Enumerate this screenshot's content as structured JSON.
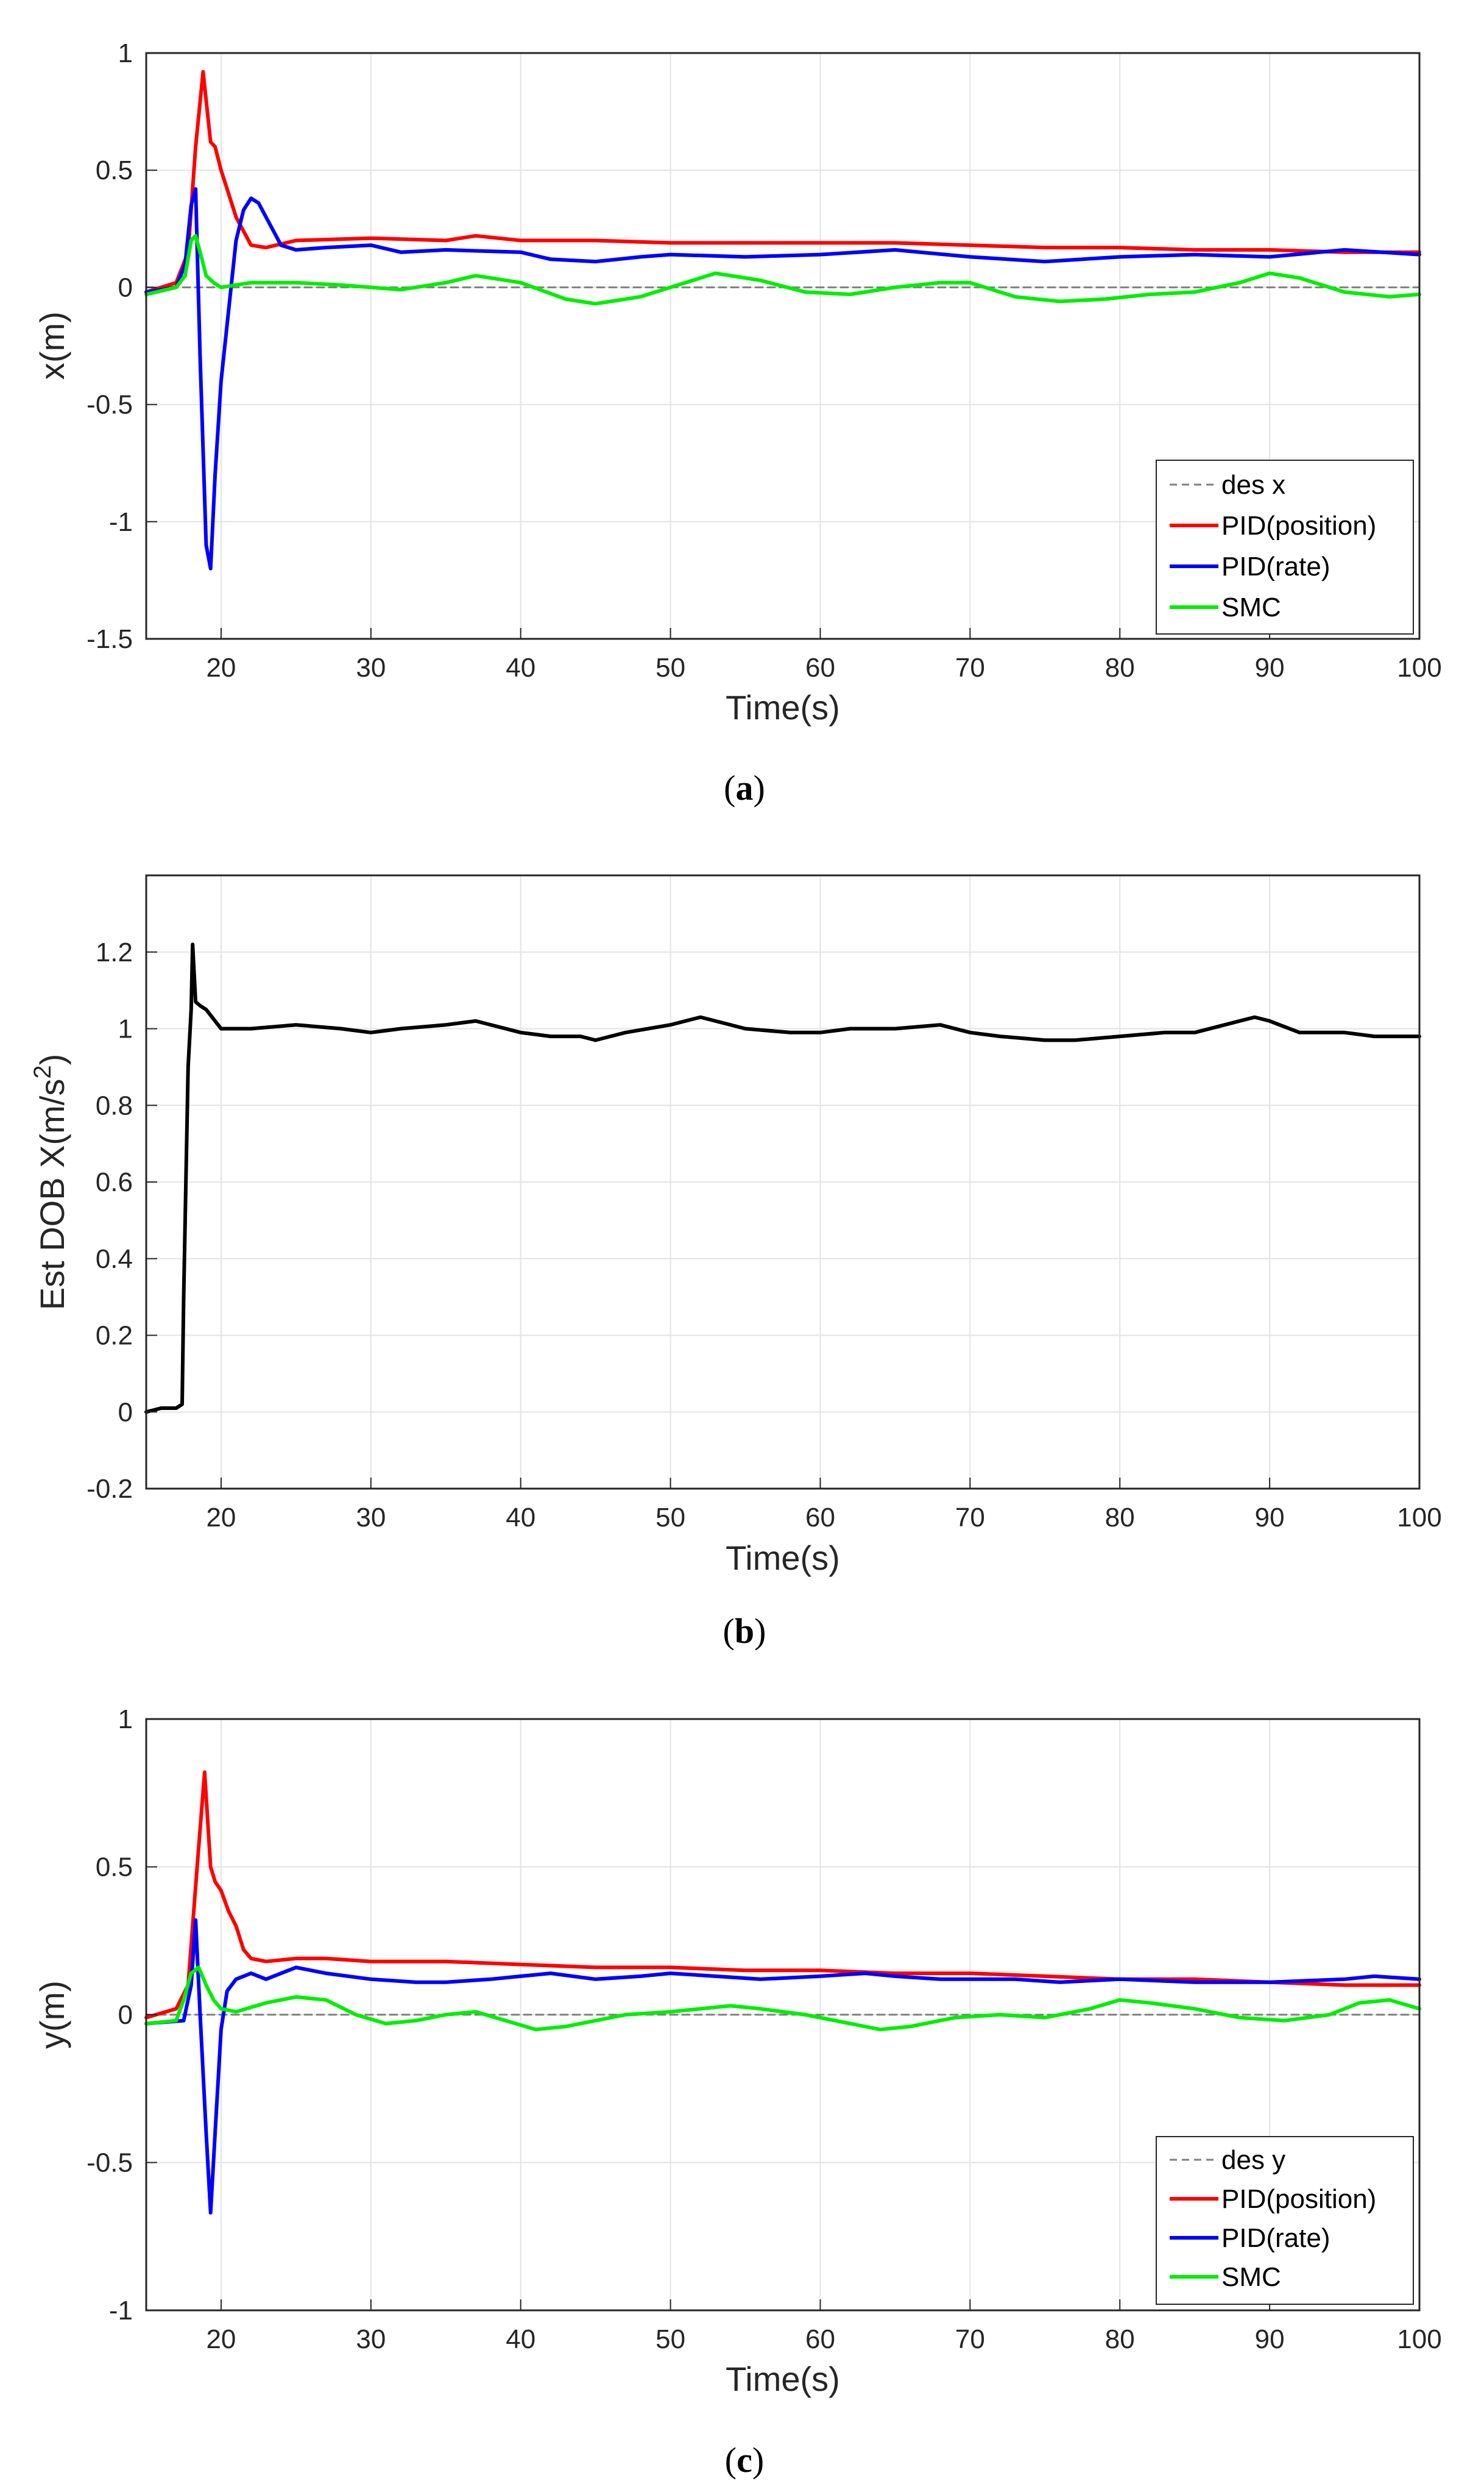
{
  "chart_data": [
    {
      "type": "line",
      "panel_label": "a",
      "xlabel": "Time(s)",
      "ylabel": "x(m)",
      "xlim": [
        15,
        100
      ],
      "ylim": [
        -1.5,
        1
      ],
      "xticks": [
        20,
        30,
        40,
        50,
        60,
        70,
        80,
        90,
        100
      ],
      "yticks": [
        -1.5,
        -1,
        -0.5,
        0,
        0.5,
        1
      ],
      "ytick_labels": [
        "-1.5",
        "-1",
        "-0.5",
        "0",
        "0.5",
        "1"
      ],
      "grid": true,
      "legend_position": "bottom-right",
      "series": [
        {
          "name": "des x",
          "color": "#7f7f7f",
          "style": "dashed",
          "x": [
            15,
            100
          ],
          "y": [
            0,
            0
          ]
        },
        {
          "name": "PID(position)",
          "color": "#ff0000",
          "style": "solid",
          "x": [
            15,
            17,
            17.8,
            18.3,
            18.8,
            19.3,
            19.6,
            20,
            20.5,
            21,
            22,
            23,
            25,
            30,
            35,
            37,
            40,
            45,
            50,
            55,
            60,
            65,
            70,
            75,
            80,
            85,
            90,
            95,
            100
          ],
          "y": [
            -0.02,
            0.02,
            0.15,
            0.6,
            0.92,
            0.62,
            0.6,
            0.5,
            0.4,
            0.3,
            0.18,
            0.17,
            0.2,
            0.21,
            0.2,
            0.22,
            0.2,
            0.2,
            0.19,
            0.19,
            0.19,
            0.19,
            0.18,
            0.17,
            0.17,
            0.16,
            0.16,
            0.15,
            0.15
          ]
        },
        {
          "name": "PID(rate)",
          "color": "#0000ff",
          "style": "solid",
          "x": [
            15,
            17,
            17.6,
            18,
            18.3,
            18.6,
            19,
            19.3,
            19.6,
            20,
            20.5,
            21,
            21.5,
            22,
            22.5,
            23,
            24,
            25,
            27,
            30,
            32,
            35,
            40,
            42,
            45,
            48,
            50,
            55,
            60,
            65,
            70,
            75,
            80,
            85,
            90,
            95,
            100
          ],
          "y": [
            -0.02,
            0,
            0.1,
            0.35,
            0.42,
            -0.3,
            -1.1,
            -1.2,
            -0.8,
            -0.4,
            -0.1,
            0.2,
            0.33,
            0.38,
            0.36,
            0.3,
            0.18,
            0.16,
            0.17,
            0.18,
            0.15,
            0.16,
            0.15,
            0.12,
            0.11,
            0.13,
            0.14,
            0.13,
            0.14,
            0.16,
            0.13,
            0.11,
            0.13,
            0.14,
            0.13,
            0.16,
            0.14
          ]
        },
        {
          "name": "SMC",
          "color": "#00ee00",
          "style": "solid",
          "x": [
            15,
            17,
            17.6,
            18,
            18.3,
            18.6,
            19,
            19.5,
            20,
            22,
            25,
            28,
            30,
            32,
            35,
            37,
            40,
            43,
            45,
            48,
            50,
            53,
            56,
            59,
            62,
            65,
            68,
            70,
            73,
            76,
            79,
            82,
            85,
            88,
            90,
            92,
            95,
            98,
            100
          ],
          "y": [
            -0.03,
            0,
            0.05,
            0.2,
            0.22,
            0.15,
            0.05,
            0.02,
            0.0,
            0.02,
            0.02,
            0.01,
            0.0,
            -0.01,
            0.02,
            0.05,
            0.02,
            -0.05,
            -0.07,
            -0.04,
            0.0,
            0.06,
            0.03,
            -0.02,
            -0.03,
            0.0,
            0.02,
            0.02,
            -0.04,
            -0.06,
            -0.05,
            -0.03,
            -0.02,
            0.02,
            0.06,
            0.04,
            -0.02,
            -0.04,
            -0.03
          ]
        }
      ]
    },
    {
      "type": "line",
      "panel_label": "b",
      "xlabel": "Time(s)",
      "ylabel": "Est DOB X(m/s",
      "ylabel_sup": "2",
      "ylabel_end": ")",
      "xlim": [
        15,
        100
      ],
      "ylim": [
        -0.2,
        1.4
      ],
      "xticks": [
        20,
        30,
        40,
        50,
        60,
        70,
        80,
        90,
        100
      ],
      "yticks": [
        -0.2,
        0,
        0.2,
        0.4,
        0.6,
        0.8,
        1,
        1.2
      ],
      "ytick_labels": [
        "-0.2",
        "0",
        "0.2",
        "0.4",
        "0.6",
        "0.8",
        "1",
        "1.2"
      ],
      "grid": true,
      "series": [
        {
          "name": "Est DOB X",
          "color": "#000000",
          "style": "solid",
          "x": [
            15,
            16,
            17,
            17.4,
            17.5,
            17.8,
            18,
            18.1,
            18.3,
            18.6,
            19,
            20,
            22,
            25,
            28,
            30,
            32,
            35,
            37,
            40,
            42,
            44,
            45,
            47,
            50,
            52,
            53,
            55,
            58,
            60,
            62,
            65,
            68,
            70,
            72,
            75,
            77,
            80,
            83,
            85,
            87,
            89,
            90,
            92,
            95,
            97,
            100
          ],
          "y": [
            0.0,
            0.01,
            0.01,
            0.02,
            0.3,
            0.9,
            1.05,
            1.22,
            1.07,
            1.06,
            1.05,
            1.0,
            1.0,
            1.01,
            1.0,
            0.99,
            1.0,
            1.01,
            1.02,
            0.99,
            0.98,
            0.98,
            0.97,
            0.99,
            1.01,
            1.03,
            1.02,
            1.0,
            0.99,
            0.99,
            1.0,
            1.0,
            1.01,
            0.99,
            0.98,
            0.97,
            0.97,
            0.98,
            0.99,
            0.99,
            1.01,
            1.03,
            1.02,
            0.99,
            0.99,
            0.98,
            0.98
          ]
        }
      ]
    },
    {
      "type": "line",
      "panel_label": "c",
      "xlabel": "Time(s)",
      "ylabel": "y(m)",
      "xlim": [
        15,
        100
      ],
      "ylim": [
        -1,
        1
      ],
      "xticks": [
        20,
        30,
        40,
        50,
        60,
        70,
        80,
        90,
        100
      ],
      "yticks": [
        -1,
        -0.5,
        0,
        0.5,
        1
      ],
      "ytick_labels": [
        "-1",
        "-0.5",
        "0",
        "0.5",
        "1"
      ],
      "grid": true,
      "legend_position": "bottom-right",
      "series": [
        {
          "name": "des y",
          "color": "#7f7f7f",
          "style": "dashed",
          "x": [
            15,
            100
          ],
          "y": [
            0,
            0
          ]
        },
        {
          "name": "PID(position)",
          "color": "#ff0000",
          "style": "solid",
          "x": [
            15,
            17,
            17.8,
            18.4,
            18.9,
            19.3,
            19.6,
            20,
            20.5,
            21,
            21.5,
            22,
            23,
            25,
            27,
            30,
            35,
            40,
            45,
            50,
            55,
            60,
            65,
            70,
            75,
            80,
            85,
            90,
            95,
            100
          ],
          "y": [
            -0.01,
            0.02,
            0.1,
            0.5,
            0.82,
            0.5,
            0.45,
            0.42,
            0.35,
            0.3,
            0.22,
            0.19,
            0.18,
            0.19,
            0.19,
            0.18,
            0.18,
            0.17,
            0.16,
            0.16,
            0.15,
            0.15,
            0.14,
            0.14,
            0.13,
            0.12,
            0.12,
            0.11,
            0.1,
            0.1
          ]
        },
        {
          "name": "PID(rate)",
          "color": "#0000ff",
          "style": "solid",
          "x": [
            15,
            17.5,
            18,
            18.3,
            18.6,
            19,
            19.3,
            19.6,
            20,
            20.4,
            21,
            22,
            23,
            25,
            27,
            30,
            33,
            35,
            38,
            40,
            42,
            45,
            48,
            50,
            53,
            56,
            60,
            63,
            65,
            68,
            70,
            73,
            76,
            80,
            85,
            90,
            95,
            97,
            100
          ],
          "y": [
            -0.03,
            -0.02,
            0.1,
            0.32,
            0.0,
            -0.4,
            -0.67,
            -0.4,
            -0.05,
            0.08,
            0.12,
            0.14,
            0.12,
            0.16,
            0.14,
            0.12,
            0.11,
            0.11,
            0.12,
            0.13,
            0.14,
            0.12,
            0.13,
            0.14,
            0.13,
            0.12,
            0.13,
            0.14,
            0.13,
            0.12,
            0.12,
            0.12,
            0.11,
            0.12,
            0.11,
            0.11,
            0.12,
            0.13,
            0.12
          ]
        },
        {
          "name": "SMC",
          "color": "#00ee00",
          "style": "solid",
          "x": [
            15,
            17,
            17.5,
            18,
            18.5,
            19,
            19.5,
            20,
            21,
            23,
            25,
            27,
            29,
            31,
            33,
            35,
            37,
            39,
            41,
            43,
            45,
            47,
            50,
            52,
            54,
            56,
            59,
            62,
            64,
            66,
            69,
            72,
            75,
            78,
            80,
            82,
            85,
            88,
            91,
            94,
            96,
            98,
            100
          ],
          "y": [
            -0.03,
            -0.02,
            0.05,
            0.14,
            0.16,
            0.1,
            0.05,
            0.02,
            0.01,
            0.04,
            0.06,
            0.05,
            0.0,
            -0.03,
            -0.02,
            0.0,
            0.01,
            -0.02,
            -0.05,
            -0.04,
            -0.02,
            0.0,
            0.01,
            0.02,
            0.03,
            0.02,
            0.0,
            -0.03,
            -0.05,
            -0.04,
            -0.01,
            0.0,
            -0.01,
            0.02,
            0.05,
            0.04,
            0.02,
            -0.01,
            -0.02,
            0.0,
            0.04,
            0.05,
            0.02
          ]
        }
      ]
    }
  ]
}
